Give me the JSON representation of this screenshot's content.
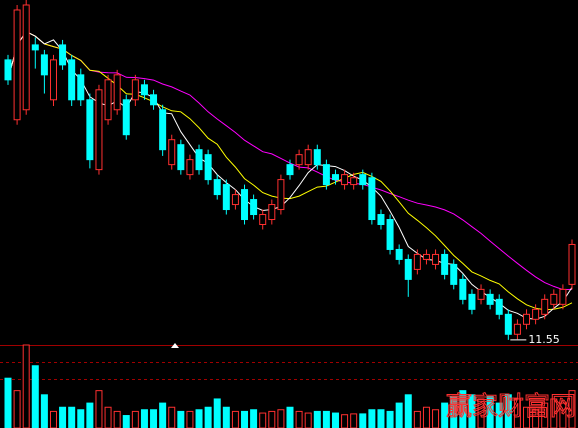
{
  "chart_data": {
    "type": "candlestick",
    "ohlc": [
      [
        16.04,
        16.12,
        15.64,
        15.72
      ],
      [
        15.08,
        16.92,
        15.0,
        16.84
      ],
      [
        15.24,
        17.0,
        15.16,
        16.92
      ],
      [
        16.28,
        16.4,
        15.9,
        16.2
      ],
      [
        16.12,
        16.2,
        15.5,
        15.8
      ],
      [
        15.4,
        16.12,
        15.3,
        16.04
      ],
      [
        16.28,
        16.36,
        15.88,
        15.96
      ],
      [
        16.04,
        16.12,
        15.3,
        15.4
      ],
      [
        15.8,
        15.9,
        15.3,
        15.4
      ],
      [
        15.4,
        15.5,
        14.3,
        14.44
      ],
      [
        14.28,
        15.64,
        14.2,
        15.56
      ],
      [
        15.08,
        15.8,
        15.0,
        15.72
      ],
      [
        15.24,
        15.88,
        15.16,
        15.8
      ],
      [
        15.4,
        15.48,
        14.76,
        14.84
      ],
      [
        15.4,
        15.8,
        15.3,
        15.72
      ],
      [
        15.64,
        15.72,
        15.4,
        15.48
      ],
      [
        15.48,
        15.56,
        15.24,
        15.32
      ],
      [
        15.24,
        15.32,
        14.5,
        14.6
      ],
      [
        14.36,
        14.84,
        14.28,
        14.76
      ],
      [
        14.68,
        14.76,
        14.2,
        14.28
      ],
      [
        14.2,
        14.52,
        14.12,
        14.44
      ],
      [
        14.6,
        14.68,
        14.2,
        14.28
      ],
      [
        14.52,
        14.6,
        14.04,
        14.12
      ],
      [
        14.12,
        14.2,
        13.8,
        13.88
      ],
      [
        14.04,
        14.12,
        13.56,
        13.64
      ],
      [
        13.72,
        13.96,
        13.64,
        13.88
      ],
      [
        13.96,
        14.04,
        13.4,
        13.48
      ],
      [
        13.8,
        13.88,
        13.48,
        13.56
      ],
      [
        13.4,
        13.64,
        13.32,
        13.56
      ],
      [
        13.48,
        13.8,
        13.4,
        13.72
      ],
      [
        13.64,
        14.2,
        13.56,
        14.12
      ],
      [
        14.36,
        14.44,
        14.12,
        14.2
      ],
      [
        14.36,
        14.6,
        14.28,
        14.52
      ],
      [
        14.36,
        14.68,
        14.28,
        14.6
      ],
      [
        14.6,
        14.68,
        14.28,
        14.36
      ],
      [
        14.36,
        14.44,
        13.96,
        14.04
      ],
      [
        14.2,
        14.28,
        14.04,
        14.12
      ],
      [
        14.04,
        14.28,
        13.96,
        14.2
      ],
      [
        14.04,
        14.23,
        13.96,
        14.15
      ],
      [
        14.2,
        14.28,
        13.96,
        14.04
      ],
      [
        14.15,
        14.23,
        13.4,
        13.48
      ],
      [
        13.56,
        13.64,
        13.32,
        13.4
      ],
      [
        13.48,
        13.56,
        12.92,
        13.0
      ],
      [
        13.0,
        13.08,
        12.76,
        12.84
      ],
      [
        12.84,
        12.92,
        12.24,
        12.52
      ],
      [
        12.68,
        13.0,
        12.6,
        12.92
      ],
      [
        12.84,
        13.0,
        12.76,
        12.92
      ],
      [
        12.76,
        13.0,
        12.68,
        12.92
      ],
      [
        12.92,
        13.0,
        12.52,
        12.6
      ],
      [
        12.76,
        12.84,
        12.36,
        12.44
      ],
      [
        12.52,
        12.6,
        12.12,
        12.2
      ],
      [
        12.28,
        12.36,
        11.96,
        12.04
      ],
      [
        12.2,
        12.44,
        12.12,
        12.36
      ],
      [
        12.28,
        12.36,
        12.04,
        12.12
      ],
      [
        12.2,
        12.28,
        11.88,
        11.96
      ],
      [
        11.96,
        12.04,
        11.55,
        11.64
      ],
      [
        11.64,
        11.88,
        11.56,
        11.8
      ],
      [
        11.8,
        12.04,
        11.72,
        11.96
      ],
      [
        11.88,
        12.12,
        11.8,
        12.04
      ],
      [
        11.96,
        12.28,
        11.88,
        12.2
      ],
      [
        12.12,
        12.36,
        12.04,
        12.28
      ],
      [
        12.12,
        12.44,
        12.04,
        12.36
      ],
      [
        12.44,
        13.16,
        12.36,
        13.08
      ]
    ],
    "volume": [
      60,
      45,
      100,
      75,
      40,
      20,
      25,
      25,
      22,
      30,
      45,
      25,
      20,
      15,
      20,
      22,
      22,
      30,
      25,
      20,
      20,
      22,
      25,
      35,
      25,
      20,
      20,
      22,
      18,
      20,
      22,
      25,
      20,
      18,
      20,
      20,
      18,
      16,
      17,
      17,
      22,
      22,
      20,
      30,
      40,
      20,
      25,
      22,
      30,
      38,
      45,
      40,
      35,
      38,
      30,
      40,
      35,
      25,
      22,
      30,
      35,
      30,
      45
    ],
    "ylim": [
      11.5,
      17.0
    ],
    "volume_ylim": [
      0,
      100
    ],
    "up_color": "#ff3030",
    "down_color": "#00ffff",
    "low_label": "11.55",
    "low_index": 55,
    "watermark": "赢家财富网"
  }
}
